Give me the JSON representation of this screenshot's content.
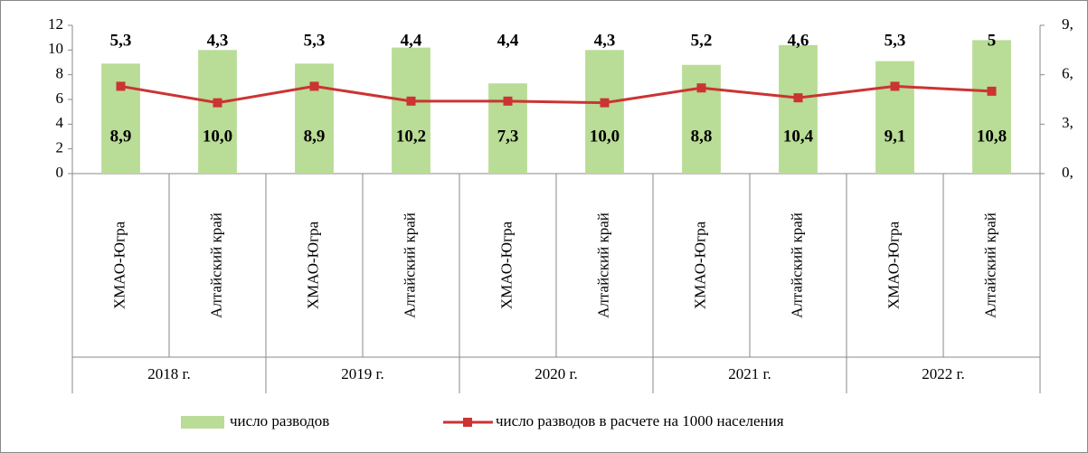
{
  "chart_data": {
    "type": "bar_line",
    "categories": [
      "ХМАО-Югра",
      "Алтайский край",
      "ХМАО-Югра",
      "Алтайский край",
      "ХМАО-Югра",
      "Алтайский край",
      "ХМАО-Югра",
      "Алтайский край",
      "ХМАО-Югра",
      "Алтайский край"
    ],
    "group_labels": [
      "2018 г.",
      "2019 г.",
      "2020 г.",
      "2021 г.",
      "2022 г."
    ],
    "series": [
      {
        "name": "число разводов",
        "type": "bar",
        "color": "#b9dc96",
        "values": [
          8.9,
          10.0,
          8.9,
          10.2,
          7.3,
          10.0,
          8.8,
          10.4,
          9.1,
          10.8
        ],
        "value_labels": [
          "8,9",
          "10,0",
          "8,9",
          "10,2",
          "7,3",
          "10,0",
          "8,8",
          "10,4",
          "9,1",
          "10,8"
        ]
      },
      {
        "name": "число разводов в расчете на 1000 населения",
        "type": "line",
        "axis": "y2",
        "color": "#cc3333",
        "values": [
          5.3,
          4.3,
          5.3,
          4.4,
          4.4,
          4.3,
          5.2,
          4.6,
          5.3,
          5
        ],
        "value_labels": [
          "5,3",
          "4,3",
          "5,3",
          "4,4",
          "4,4",
          "4,3",
          "5,2",
          "4,6",
          "5,3",
          "5"
        ]
      }
    ],
    "ylim": [
      0,
      12
    ],
    "yticks": [
      0,
      2,
      4,
      6,
      8,
      10,
      12
    ],
    "y2lim": [
      0,
      9
    ],
    "y2ticks": [
      {
        "value": 0,
        "label": "0,"
      },
      {
        "value": 3,
        "label": "3,"
      },
      {
        "value": 6,
        "label": "6,"
      },
      {
        "value": 9,
        "label": "9,"
      }
    ],
    "legend": "bottom"
  }
}
